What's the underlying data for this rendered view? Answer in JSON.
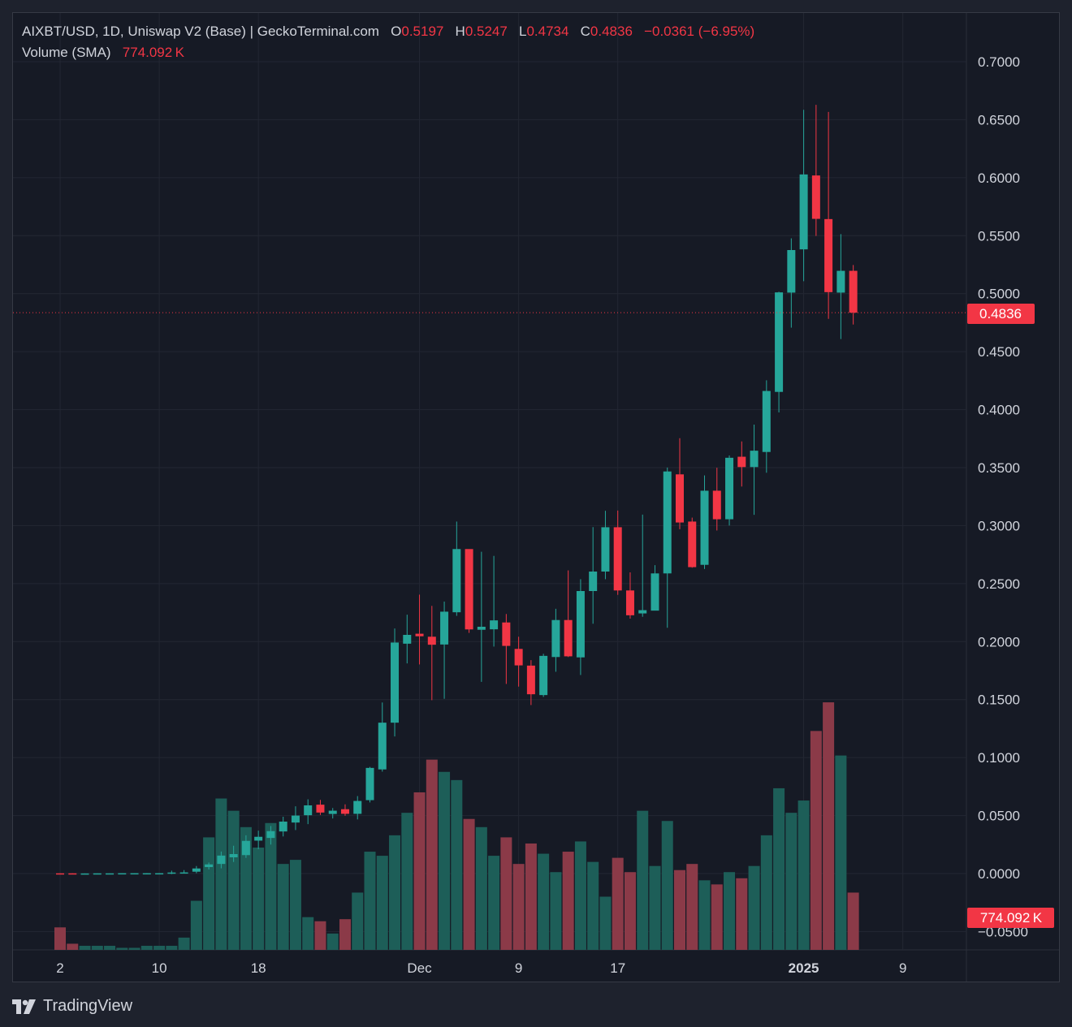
{
  "legend": {
    "symbol": "AIXBT/USD, 1D, Uniswap V2 (Base) | GeckoTerminal.com",
    "o_label": "O",
    "o_value": "0.5197",
    "h_label": "H",
    "h_value": "0.5247",
    "l_label": "L",
    "l_value": "0.4734",
    "c_label": "C",
    "c_value": "0.4836",
    "change": "−0.0361 (−6.95%)",
    "volume_label": "Volume (SMA)",
    "volume_value": "774.092 K"
  },
  "price_label": "0.4836",
  "volume_label_badge": "774.092 K",
  "brand": {
    "name": "TradingView"
  },
  "colors": {
    "background": "#161a25",
    "up": "#26a69a",
    "down": "#f23645",
    "vol_up": "#1d5e58",
    "vol_down": "#8b3a48",
    "grid": "#232733",
    "text": "#d1d4dc"
  },
  "chart_data": {
    "type": "candlestick",
    "ylim": [
      -0.065,
      0.72
    ],
    "y_ticks": [
      "0.7000",
      "0.6500",
      "0.6000",
      "0.5500",
      "0.5000",
      "0.4500",
      "0.4000",
      "0.3500",
      "0.3000",
      "0.2500",
      "0.2000",
      "0.1500",
      "0.1000",
      "0.0500",
      "0.0000",
      "−0.0500"
    ],
    "y_tick_values": [
      0.7,
      0.65,
      0.6,
      0.55,
      0.5,
      0.45,
      0.4,
      0.35,
      0.3,
      0.25,
      0.2,
      0.15,
      0.1,
      0.05,
      0.0,
      -0.05
    ],
    "x_ticks": [
      {
        "label": "2",
        "day": 0,
        "bold": false
      },
      {
        "label": "10",
        "day": 8,
        "bold": false
      },
      {
        "label": "18",
        "day": 16,
        "bold": false
      },
      {
        "label": "Dec",
        "day": 29,
        "bold": false
      },
      {
        "label": "9",
        "day": 37,
        "bold": false
      },
      {
        "label": "17",
        "day": 45,
        "bold": false
      },
      {
        "label": "2025",
        "day": 60,
        "bold": true
      },
      {
        "label": "9",
        "day": 68,
        "bold": false
      }
    ],
    "last_price": 0.4836,
    "candles": [
      {
        "day": 0,
        "o": 0.0002,
        "h": 0.0003,
        "l": 0.0001,
        "c": 0.0001,
        "v": 0.011
      },
      {
        "day": 1,
        "o": 0.0002,
        "h": 0.0003,
        "l": 0.0001,
        "c": 0.0001,
        "v": 0.003
      },
      {
        "day": 2,
        "o": 0.0001,
        "h": 0.0002,
        "l": 0.0001,
        "c": 0.0001,
        "v": 0.002
      },
      {
        "day": 3,
        "o": 0.0001,
        "h": 0.0002,
        "l": 0.0001,
        "c": 0.0002,
        "v": 0.002
      },
      {
        "day": 4,
        "o": 0.0001,
        "h": 0.0002,
        "l": 0.0001,
        "c": 0.0002,
        "v": 0.002
      },
      {
        "day": 5,
        "o": 0.0002,
        "h": 0.0003,
        "l": 0.0001,
        "c": 0.0003,
        "v": 0.001
      },
      {
        "day": 6,
        "o": 0.0002,
        "h": 0.0003,
        "l": 0.0001,
        "c": 0.0003,
        "v": 0.001
      },
      {
        "day": 7,
        "o": 0.0002,
        "h": 0.0004,
        "l": 0.0001,
        "c": 0.0003,
        "v": 0.002
      },
      {
        "day": 8,
        "o": 0.0002,
        "h": 0.0004,
        "l": 0.0001,
        "c": 0.0003,
        "v": 0.002
      },
      {
        "day": 9,
        "o": 0.0004,
        "h": 0.0025,
        "l": -0.0005,
        "c": 0.0009,
        "v": 0.002
      },
      {
        "day": 10,
        "o": 0.0006,
        "h": 0.003,
        "l": 0.0,
        "c": 0.001,
        "v": 0.006
      },
      {
        "day": 11,
        "o": 0.0016,
        "h": 0.0065,
        "l": 0.0003,
        "c": 0.0044,
        "v": 0.024
      },
      {
        "day": 12,
        "o": 0.0056,
        "h": 0.0095,
        "l": 0.0035,
        "c": 0.0079,
        "v": 0.055
      },
      {
        "day": 13,
        "o": 0.0083,
        "h": 0.019,
        "l": 0.0045,
        "c": 0.0155,
        "v": 0.074
      },
      {
        "day": 14,
        "o": 0.014,
        "h": 0.024,
        "l": 0.01,
        "c": 0.0168,
        "v": 0.068
      },
      {
        "day": 15,
        "o": 0.0159,
        "h": 0.033,
        "l": 0.0135,
        "c": 0.0282,
        "v": 0.06
      },
      {
        "day": 16,
        "o": 0.0284,
        "h": 0.037,
        "l": 0.021,
        "c": 0.0317,
        "v": 0.05
      },
      {
        "day": 17,
        "o": 0.0307,
        "h": 0.041,
        "l": 0.025,
        "c": 0.0366,
        "v": 0.062
      },
      {
        "day": 18,
        "o": 0.0363,
        "h": 0.049,
        "l": 0.032,
        "c": 0.0448,
        "v": 0.042
      },
      {
        "day": 19,
        "o": 0.044,
        "h": 0.058,
        "l": 0.0375,
        "c": 0.05,
        "v": 0.044
      },
      {
        "day": 20,
        "o": 0.0503,
        "h": 0.064,
        "l": 0.0426,
        "c": 0.0588,
        "v": 0.016
      },
      {
        "day": 21,
        "o": 0.0594,
        "h": 0.0635,
        "l": 0.0505,
        "c": 0.0526,
        "v": 0.014
      },
      {
        "day": 22,
        "o": 0.0514,
        "h": 0.0565,
        "l": 0.0475,
        "c": 0.0542,
        "v": 0.008
      },
      {
        "day": 23,
        "o": 0.0555,
        "h": 0.0597,
        "l": 0.0498,
        "c": 0.0515,
        "v": 0.015
      },
      {
        "day": 24,
        "o": 0.0515,
        "h": 0.0668,
        "l": 0.0467,
        "c": 0.0626,
        "v": 0.028
      },
      {
        "day": 25,
        "o": 0.0633,
        "h": 0.092,
        "l": 0.0613,
        "c": 0.0911,
        "v": 0.048
      },
      {
        "day": 26,
        "o": 0.0898,
        "h": 0.1475,
        "l": 0.0879,
        "c": 0.1301,
        "v": 0.046
      },
      {
        "day": 27,
        "o": 0.1301,
        "h": 0.2113,
        "l": 0.1182,
        "c": 0.1992,
        "v": 0.056
      },
      {
        "day": 28,
        "o": 0.1982,
        "h": 0.2232,
        "l": 0.1812,
        "c": 0.2058,
        "v": 0.067
      },
      {
        "day": 29,
        "o": 0.2068,
        "h": 0.2405,
        "l": 0.1803,
        "c": 0.2046,
        "v": 0.077
      },
      {
        "day": 30,
        "o": 0.2042,
        "h": 0.2308,
        "l": 0.1495,
        "c": 0.1973,
        "v": 0.093
      },
      {
        "day": 31,
        "o": 0.1975,
        "h": 0.2345,
        "l": 0.1507,
        "c": 0.2258,
        "v": 0.087
      },
      {
        "day": 32,
        "o": 0.2253,
        "h": 0.3035,
        "l": 0.2222,
        "c": 0.2798,
        "v": 0.083
      },
      {
        "day": 33,
        "o": 0.2798,
        "h": 0.2781,
        "l": 0.2075,
        "c": 0.2105,
        "v": 0.064
      },
      {
        "day": 34,
        "o": 0.2102,
        "h": 0.2775,
        "l": 0.1653,
        "c": 0.2128,
        "v": 0.06
      },
      {
        "day": 35,
        "o": 0.2106,
        "h": 0.2739,
        "l": 0.1957,
        "c": 0.2183,
        "v": 0.046
      },
      {
        "day": 36,
        "o": 0.2165,
        "h": 0.2238,
        "l": 0.1635,
        "c": 0.1963,
        "v": 0.055
      },
      {
        "day": 37,
        "o": 0.1937,
        "h": 0.2042,
        "l": 0.1612,
        "c": 0.1795,
        "v": 0.042
      },
      {
        "day": 38,
        "o": 0.1793,
        "h": 0.184,
        "l": 0.1453,
        "c": 0.1546,
        "v": 0.052
      },
      {
        "day": 39,
        "o": 0.1539,
        "h": 0.1895,
        "l": 0.1523,
        "c": 0.1877,
        "v": 0.047
      },
      {
        "day": 40,
        "o": 0.1867,
        "h": 0.2283,
        "l": 0.174,
        "c": 0.2186,
        "v": 0.038
      },
      {
        "day": 41,
        "o": 0.2186,
        "h": 0.2614,
        "l": 0.1867,
        "c": 0.1873,
        "v": 0.048
      },
      {
        "day": 42,
        "o": 0.1864,
        "h": 0.2538,
        "l": 0.1712,
        "c": 0.2436,
        "v": 0.053
      },
      {
        "day": 43,
        "o": 0.2436,
        "h": 0.2987,
        "l": 0.2154,
        "c": 0.2604,
        "v": 0.043
      },
      {
        "day": 44,
        "o": 0.2604,
        "h": 0.3128,
        "l": 0.2538,
        "c": 0.2986,
        "v": 0.026
      },
      {
        "day": 45,
        "o": 0.2986,
        "h": 0.313,
        "l": 0.2403,
        "c": 0.2441,
        "v": 0.045
      },
      {
        "day": 46,
        "o": 0.2441,
        "h": 0.2597,
        "l": 0.2198,
        "c": 0.2227,
        "v": 0.038
      },
      {
        "day": 47,
        "o": 0.2243,
        "h": 0.3095,
        "l": 0.2214,
        "c": 0.2271,
        "v": 0.068
      },
      {
        "day": 48,
        "o": 0.2267,
        "h": 0.2659,
        "l": 0.2268,
        "c": 0.2588,
        "v": 0.041
      },
      {
        "day": 49,
        "o": 0.2588,
        "h": 0.3501,
        "l": 0.2119,
        "c": 0.3467,
        "v": 0.063
      },
      {
        "day": 50,
        "o": 0.3442,
        "h": 0.3754,
        "l": 0.2969,
        "c": 0.3027,
        "v": 0.039
      },
      {
        "day": 51,
        "o": 0.3035,
        "h": 0.3069,
        "l": 0.2637,
        "c": 0.2642,
        "v": 0.042
      },
      {
        "day": 52,
        "o": 0.2662,
        "h": 0.3433,
        "l": 0.2626,
        "c": 0.3301,
        "v": 0.034
      },
      {
        "day": 53,
        "o": 0.3301,
        "h": 0.3499,
        "l": 0.2958,
        "c": 0.3055,
        "v": 0.032
      },
      {
        "day": 54,
        "o": 0.3055,
        "h": 0.3605,
        "l": 0.3001,
        "c": 0.3585,
        "v": 0.038
      },
      {
        "day": 55,
        "o": 0.3594,
        "h": 0.3726,
        "l": 0.3337,
        "c": 0.3505,
        "v": 0.035
      },
      {
        "day": 56,
        "o": 0.3505,
        "h": 0.3871,
        "l": 0.3093,
        "c": 0.3646,
        "v": 0.041
      },
      {
        "day": 57,
        "o": 0.3635,
        "h": 0.4253,
        "l": 0.3456,
        "c": 0.4161,
        "v": 0.056
      },
      {
        "day": 58,
        "o": 0.4153,
        "h": 0.5016,
        "l": 0.3976,
        "c": 0.5011,
        "v": 0.079
      },
      {
        "day": 59,
        "o": 0.5009,
        "h": 0.5477,
        "l": 0.4707,
        "c": 0.5376,
        "v": 0.067
      },
      {
        "day": 60,
        "o": 0.5382,
        "h": 0.6585,
        "l": 0.5107,
        "c": 0.6028,
        "v": 0.073
      },
      {
        "day": 61,
        "o": 0.6019,
        "h": 0.6628,
        "l": 0.5498,
        "c": 0.5645,
        "v": 0.107
      },
      {
        "day": 62,
        "o": 0.5643,
        "h": 0.6567,
        "l": 0.4783,
        "c": 0.5013,
        "v": 0.121
      },
      {
        "day": 63,
        "o": 0.5009,
        "h": 0.5513,
        "l": 0.4609,
        "c": 0.5197,
        "v": 0.095
      },
      {
        "day": 64,
        "o": 0.5197,
        "h": 0.5247,
        "l": 0.4734,
        "c": 0.4836,
        "v": 0.028
      }
    ]
  }
}
